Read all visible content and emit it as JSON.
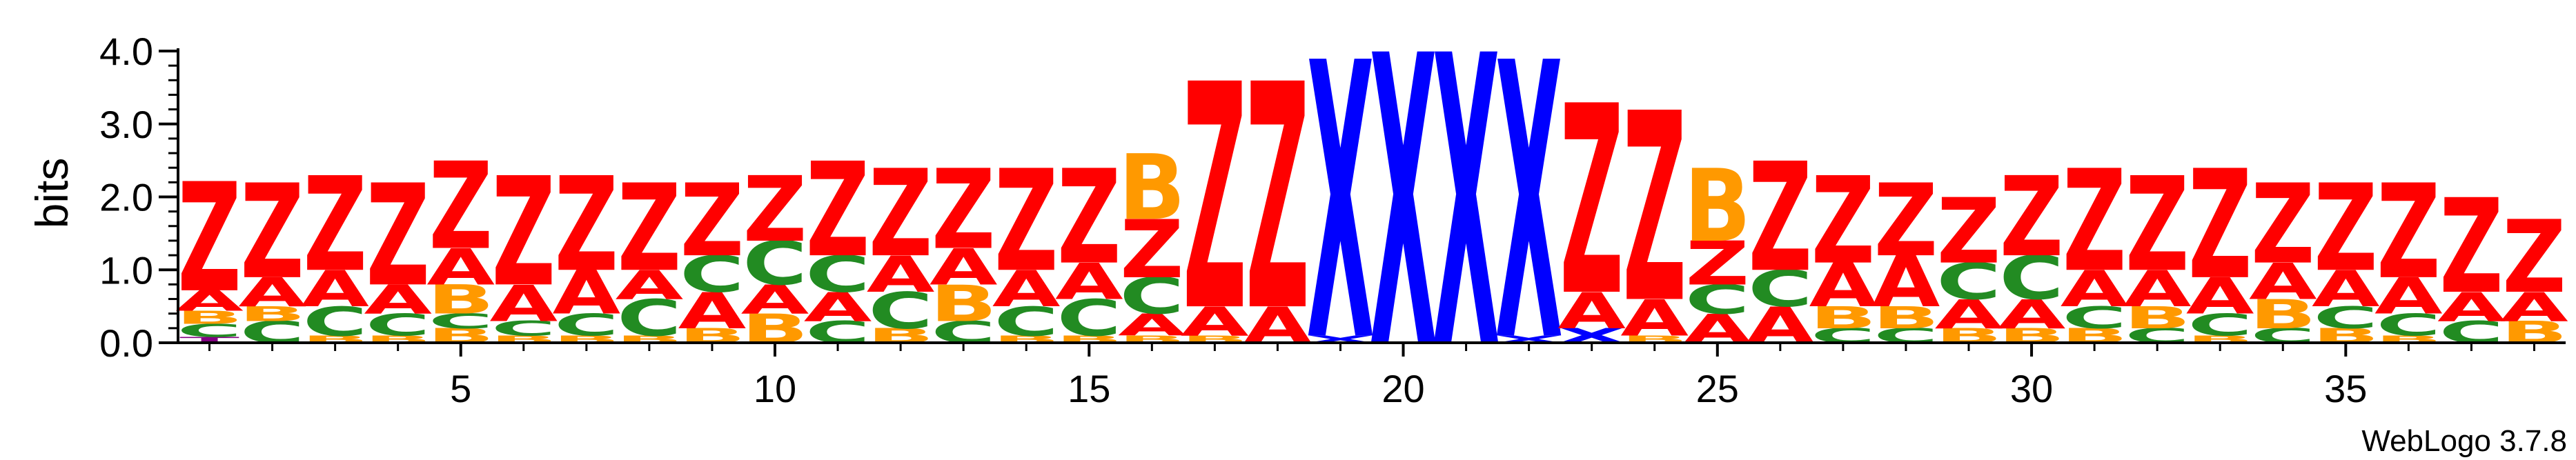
{
  "chart_data": {
    "type": "sequence-logo",
    "ylabel": "bits",
    "xlabel": "",
    "ylim": [
      0,
      4
    ],
    "y_ticks": [
      "0.0",
      "1.0",
      "2.0",
      "3.0",
      "4.0"
    ],
    "x_ticks": [
      "5",
      "10",
      "15",
      "20",
      "25",
      "30",
      "35"
    ],
    "x_range": [
      1,
      38
    ],
    "credit": "WebLogo 3.7.8",
    "colors": {
      "Z": "#ff0000",
      "A": "#ff0000",
      "X": "#0000ff",
      "B": "#ff9900",
      "C": "#228b22",
      "T": "#800080",
      "other": "#ff0000"
    },
    "positions": [
      {
        "pos": 1,
        "letters": [
          [
            "T",
            0.08
          ],
          [
            "C",
            0.18
          ],
          [
            "B",
            0.18
          ],
          [
            "A",
            0.28
          ],
          [
            "Z",
            1.5
          ]
        ]
      },
      {
        "pos": 2,
        "letters": [
          [
            "C",
            0.3
          ],
          [
            "B",
            0.2
          ],
          [
            "A",
            0.4
          ],
          [
            "Z",
            1.3
          ]
        ]
      },
      {
        "pos": 3,
        "letters": [
          [
            "B",
            0.1
          ],
          [
            "C",
            0.4
          ],
          [
            "A",
            0.5
          ],
          [
            "Z",
            1.3
          ]
        ]
      },
      {
        "pos": 4,
        "letters": [
          [
            "B",
            0.1
          ],
          [
            "C",
            0.3
          ],
          [
            "A",
            0.4
          ],
          [
            "Z",
            1.4
          ]
        ]
      },
      {
        "pos": 5,
        "letters": [
          [
            "B",
            0.2
          ],
          [
            "C",
            0.2
          ],
          [
            "B",
            0.4
          ],
          [
            "A",
            0.5
          ],
          [
            "Z",
            1.2
          ]
        ]
      },
      {
        "pos": 6,
        "letters": [
          [
            "B",
            0.1
          ],
          [
            "C",
            0.2
          ],
          [
            "A",
            0.5
          ],
          [
            "Z",
            1.5
          ]
        ]
      },
      {
        "pos": 7,
        "letters": [
          [
            "B",
            0.1
          ],
          [
            "C",
            0.3
          ],
          [
            "A",
            0.6
          ],
          [
            "Z",
            1.3
          ]
        ]
      },
      {
        "pos": 8,
        "letters": [
          [
            "B",
            0.1
          ],
          [
            "C",
            0.5
          ],
          [
            "A",
            0.4
          ],
          [
            "Z",
            1.2
          ]
        ]
      },
      {
        "pos": 9,
        "letters": [
          [
            "B",
            0.2
          ],
          [
            "A",
            0.5
          ],
          [
            "C",
            0.5
          ],
          [
            "Z",
            1.0
          ]
        ]
      },
      {
        "pos": 10,
        "letters": [
          [
            "B",
            0.4
          ],
          [
            "A",
            0.4
          ],
          [
            "C",
            0.6
          ],
          [
            "Z",
            0.9
          ]
        ]
      },
      {
        "pos": 11,
        "letters": [
          [
            "C",
            0.3
          ],
          [
            "A",
            0.4
          ],
          [
            "C",
            0.5
          ],
          [
            "Z",
            1.3
          ]
        ]
      },
      {
        "pos": 12,
        "letters": [
          [
            "B",
            0.2
          ],
          [
            "C",
            0.5
          ],
          [
            "A",
            0.5
          ],
          [
            "Z",
            1.2
          ]
        ]
      },
      {
        "pos": 13,
        "letters": [
          [
            "C",
            0.3
          ],
          [
            "B",
            0.5
          ],
          [
            "A",
            0.5
          ],
          [
            "Z",
            1.1
          ]
        ]
      },
      {
        "pos": 14,
        "letters": [
          [
            "B",
            0.1
          ],
          [
            "C",
            0.4
          ],
          [
            "A",
            0.5
          ],
          [
            "Z",
            1.4
          ]
        ]
      },
      {
        "pos": 15,
        "letters": [
          [
            "B",
            0.1
          ],
          [
            "C",
            0.5
          ],
          [
            "A",
            0.5
          ],
          [
            "Z",
            1.3
          ]
        ]
      },
      {
        "pos": 16,
        "letters": [
          [
            "B",
            0.1
          ],
          [
            "A",
            0.3
          ],
          [
            "C",
            0.5
          ],
          [
            "Z",
            0.8
          ],
          [
            "B",
            0.9
          ]
        ]
      },
      {
        "pos": 17,
        "letters": [
          [
            "B",
            0.1
          ],
          [
            "A",
            0.4
          ],
          [
            "Z",
            3.1
          ]
        ]
      },
      {
        "pos": 18,
        "letters": [
          [
            "A",
            0.5
          ],
          [
            "Z",
            3.1
          ]
        ]
      },
      {
        "pos": 19,
        "letters": [
          [
            "X",
            0.1
          ],
          [
            "X",
            3.8
          ]
        ]
      },
      {
        "pos": 20,
        "letters": [
          [
            "X",
            4.0
          ]
        ]
      },
      {
        "pos": 21,
        "letters": [
          [
            "X",
            4.0
          ]
        ]
      },
      {
        "pos": 22,
        "letters": [
          [
            "X",
            0.1
          ],
          [
            "X",
            3.8
          ]
        ]
      },
      {
        "pos": 23,
        "letters": [
          [
            "X",
            0.2
          ],
          [
            "A",
            0.5
          ],
          [
            "Z",
            2.6
          ]
        ]
      },
      {
        "pos": 24,
        "letters": [
          [
            "B",
            0.1
          ],
          [
            "A",
            0.5
          ],
          [
            "Z",
            2.6
          ]
        ]
      },
      {
        "pos": 25,
        "letters": [
          [
            "A",
            0.4
          ],
          [
            "C",
            0.4
          ],
          [
            "Z",
            0.6
          ],
          [
            "B",
            1.0
          ]
        ]
      },
      {
        "pos": 26,
        "letters": [
          [
            "A",
            0.5
          ],
          [
            "C",
            0.5
          ],
          [
            "Z",
            1.5
          ]
        ]
      },
      {
        "pos": 27,
        "letters": [
          [
            "C",
            0.2
          ],
          [
            "B",
            0.3
          ],
          [
            "A",
            0.6
          ],
          [
            "Z",
            1.2
          ]
        ]
      },
      {
        "pos": 28,
        "letters": [
          [
            "C",
            0.2
          ],
          [
            "B",
            0.3
          ],
          [
            "A",
            0.7
          ],
          [
            "Z",
            1.0
          ]
        ]
      },
      {
        "pos": 29,
        "letters": [
          [
            "B",
            0.2
          ],
          [
            "A",
            0.4
          ],
          [
            "C",
            0.5
          ],
          [
            "Z",
            0.9
          ]
        ]
      },
      {
        "pos": 30,
        "letters": [
          [
            "B",
            0.2
          ],
          [
            "A",
            0.4
          ],
          [
            "C",
            0.6
          ],
          [
            "Z",
            1.1
          ]
        ]
      },
      {
        "pos": 31,
        "letters": [
          [
            "B",
            0.2
          ],
          [
            "C",
            0.3
          ],
          [
            "A",
            0.5
          ],
          [
            "Z",
            1.4
          ]
        ]
      },
      {
        "pos": 32,
        "letters": [
          [
            "C",
            0.2
          ],
          [
            "B",
            0.3
          ],
          [
            "A",
            0.5
          ],
          [
            "Z",
            1.3
          ]
        ]
      },
      {
        "pos": 33,
        "letters": [
          [
            "B",
            0.1
          ],
          [
            "C",
            0.3
          ],
          [
            "A",
            0.5
          ],
          [
            "Z",
            1.5
          ]
        ]
      },
      {
        "pos": 34,
        "letters": [
          [
            "C",
            0.2
          ],
          [
            "B",
            0.4
          ],
          [
            "A",
            0.5
          ],
          [
            "Z",
            1.1
          ]
        ]
      },
      {
        "pos": 35,
        "letters": [
          [
            "B",
            0.2
          ],
          [
            "C",
            0.3
          ],
          [
            "A",
            0.5
          ],
          [
            "Z",
            1.2
          ]
        ]
      },
      {
        "pos": 36,
        "letters": [
          [
            "B",
            0.1
          ],
          [
            "C",
            0.3
          ],
          [
            "A",
            0.5
          ],
          [
            "Z",
            1.3
          ]
        ]
      },
      {
        "pos": 37,
        "letters": [
          [
            "C",
            0.3
          ],
          [
            "A",
            0.4
          ],
          [
            "Z",
            1.3
          ]
        ]
      },
      {
        "pos": 38,
        "letters": [
          [
            "B",
            0.3
          ],
          [
            "A",
            0.4
          ],
          [
            "Z",
            1.0
          ]
        ]
      }
    ]
  }
}
